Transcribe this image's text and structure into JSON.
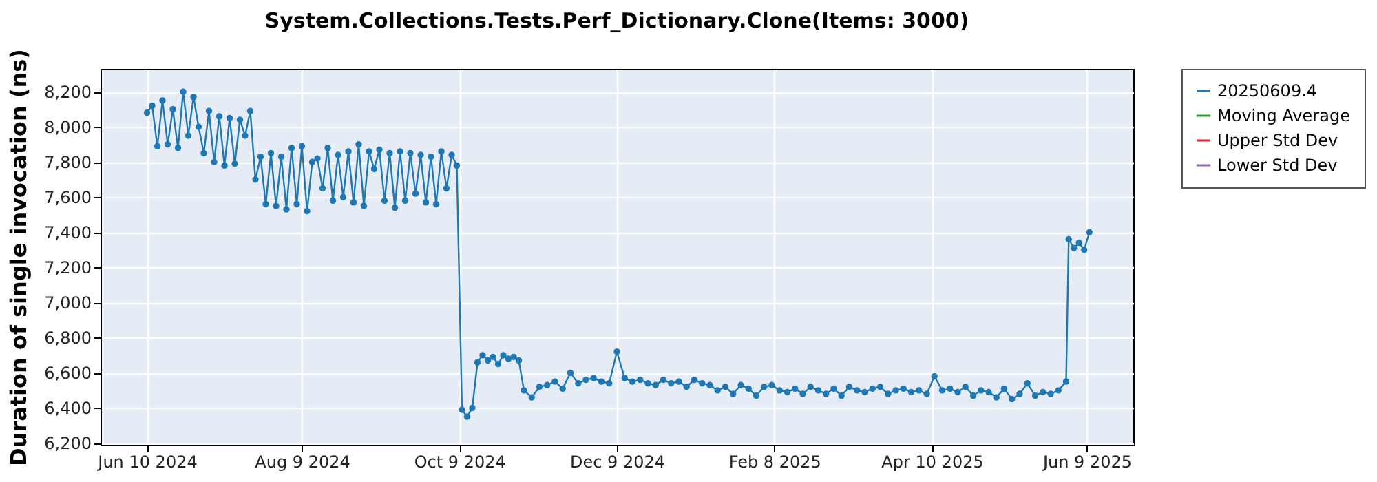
{
  "chart_data": {
    "type": "line",
    "title": "System.Collections.Tests.Perf_Dictionary.Clone(Items: 3000)",
    "ylabel": "Duration of single invocation (ns)",
    "xlim": [
      "2024-05-23",
      "2025-06-27"
    ],
    "xticks": [
      {
        "value": "2024-06-10",
        "label": "Jun 10 2024"
      },
      {
        "value": "2024-08-09",
        "label": "Aug 9 2024"
      },
      {
        "value": "2024-10-09",
        "label": "Oct 9 2024"
      },
      {
        "value": "2024-12-09",
        "label": "Dec 9 2024"
      },
      {
        "value": "2025-02-08",
        "label": "Feb 8 2025"
      },
      {
        "value": "2025-04-10",
        "label": "Apr 10 2025"
      },
      {
        "value": "2025-06-09",
        "label": "Jun 9 2025"
      }
    ],
    "ylim": [
      6190,
      8330
    ],
    "yticks": [
      {
        "value": 6200,
        "label": "6,200"
      },
      {
        "value": 6400,
        "label": "6,400"
      },
      {
        "value": 6600,
        "label": "6,600"
      },
      {
        "value": 6800,
        "label": "6,800"
      },
      {
        "value": 7000,
        "label": "7,000"
      },
      {
        "value": 7200,
        "label": "7,200"
      },
      {
        "value": 7400,
        "label": "7,400"
      },
      {
        "value": 7600,
        "label": "7,600"
      },
      {
        "value": 7800,
        "label": "7,800"
      },
      {
        "value": 8000,
        "label": "8,000"
      },
      {
        "value": 8200,
        "label": "8,200"
      }
    ],
    "grid": true,
    "legend": "right",
    "marker": "circle",
    "line_style": "solid",
    "x": [
      "2024-06-10",
      "2024-06-12",
      "2024-06-14",
      "2024-06-16",
      "2024-06-18",
      "2024-06-20",
      "2024-06-22",
      "2024-06-24",
      "2024-06-26",
      "2024-06-28",
      "2024-06-30",
      "2024-07-02",
      "2024-07-04",
      "2024-07-06",
      "2024-07-08",
      "2024-07-10",
      "2024-07-12",
      "2024-07-14",
      "2024-07-16",
      "2024-07-18",
      "2024-07-20",
      "2024-07-22",
      "2024-07-24",
      "2024-07-26",
      "2024-07-28",
      "2024-07-30",
      "2024-08-01",
      "2024-08-03",
      "2024-08-05",
      "2024-08-07",
      "2024-08-09",
      "2024-08-11",
      "2024-08-13",
      "2024-08-15",
      "2024-08-17",
      "2024-08-19",
      "2024-08-21",
      "2024-08-23",
      "2024-08-25",
      "2024-08-27",
      "2024-08-29",
      "2024-08-31",
      "2024-09-02",
      "2024-09-04",
      "2024-09-06",
      "2024-09-08",
      "2024-09-10",
      "2024-09-12",
      "2024-09-14",
      "2024-09-16",
      "2024-09-18",
      "2024-09-20",
      "2024-09-22",
      "2024-09-24",
      "2024-09-26",
      "2024-09-28",
      "2024-09-30",
      "2024-10-02",
      "2024-10-04",
      "2024-10-06",
      "2024-10-08",
      "2024-10-10",
      "2024-10-12",
      "2024-10-14",
      "2024-10-16",
      "2024-10-18",
      "2024-10-20",
      "2024-10-22",
      "2024-10-24",
      "2024-10-26",
      "2024-10-28",
      "2024-10-30",
      "2024-11-01",
      "2024-11-03",
      "2024-11-06",
      "2024-11-09",
      "2024-11-12",
      "2024-11-15",
      "2024-11-18",
      "2024-11-21",
      "2024-11-24",
      "2024-11-27",
      "2024-11-30",
      "2024-12-03",
      "2024-12-06",
      "2024-12-09",
      "2024-12-12",
      "2024-12-15",
      "2024-12-18",
      "2024-12-21",
      "2024-12-24",
      "2024-12-27",
      "2024-12-30",
      "2025-01-02",
      "2025-01-05",
      "2025-01-08",
      "2025-01-11",
      "2025-01-14",
      "2025-01-17",
      "2025-01-20",
      "2025-01-23",
      "2025-01-26",
      "2025-01-29",
      "2025-02-01",
      "2025-02-04",
      "2025-02-07",
      "2025-02-10",
      "2025-02-13",
      "2025-02-16",
      "2025-02-19",
      "2025-02-22",
      "2025-02-25",
      "2025-02-28",
      "2025-03-03",
      "2025-03-06",
      "2025-03-09",
      "2025-03-12",
      "2025-03-15",
      "2025-03-18",
      "2025-03-21",
      "2025-03-24",
      "2025-03-27",
      "2025-03-30",
      "2025-04-02",
      "2025-04-05",
      "2025-04-08",
      "2025-04-11",
      "2025-04-14",
      "2025-04-17",
      "2025-04-20",
      "2025-04-23",
      "2025-04-26",
      "2025-04-29",
      "2025-05-02",
      "2025-05-05",
      "2025-05-08",
      "2025-05-11",
      "2025-05-14",
      "2025-05-17",
      "2025-05-20",
      "2025-05-23",
      "2025-05-26",
      "2025-05-29",
      "2025-06-01",
      "2025-06-02",
      "2025-06-04",
      "2025-06-06",
      "2025-06-08",
      "2025-06-10"
    ],
    "series": [
      {
        "name": "20250609.4",
        "color": "#1f77b4",
        "values": [
          8080,
          8120,
          7890,
          8150,
          7900,
          8100,
          7880,
          8200,
          7950,
          8170,
          8000,
          7850,
          8090,
          7800,
          8060,
          7780,
          8050,
          7790,
          8040,
          7950,
          8090,
          7700,
          7830,
          7560,
          7850,
          7550,
          7830,
          7530,
          7880,
          7560,
          7890,
          7520,
          7800,
          7820,
          7650,
          7880,
          7580,
          7840,
          7600,
          7860,
          7570,
          7900,
          7550,
          7860,
          7760,
          7870,
          7580,
          7850,
          7540,
          7860,
          7580,
          7850,
          7620,
          7840,
          7570,
          7830,
          7560,
          7860,
          7650,
          7840,
          7780,
          6390,
          6350,
          6400,
          6660,
          6700,
          6670,
          6690,
          6650,
          6700,
          6680,
          6690,
          6670,
          6500,
          6460,
          6520,
          6530,
          6550,
          6510,
          6600,
          6540,
          6560,
          6570,
          6550,
          6540,
          6720,
          6570,
          6550,
          6560,
          6540,
          6530,
          6560,
          6540,
          6550,
          6520,
          6560,
          6540,
          6530,
          6500,
          6520,
          6480,
          6530,
          6510,
          6470,
          6520,
          6530,
          6500,
          6490,
          6510,
          6480,
          6520,
          6500,
          6480,
          6510,
          6470,
          6520,
          6500,
          6490,
          6510,
          6520,
          6480,
          6500,
          6510,
          6490,
          6500,
          6480,
          6580,
          6500,
          6510,
          6490,
          6520,
          6470,
          6500,
          6490,
          6460,
          6510,
          6450,
          6480,
          6540,
          6470,
          6490,
          6480,
          6500,
          6550,
          7360,
          7310,
          7340,
          7300,
          7400
        ]
      },
      {
        "name": "Moving Average",
        "color": "#2ca02c",
        "values": [
          null,
          null,
          null,
          null,
          null,
          null,
          null,
          null,
          null,
          null,
          null,
          null,
          null,
          null,
          null,
          null,
          null,
          null,
          null,
          null,
          null,
          null,
          null,
          null,
          null,
          null,
          null,
          null,
          null,
          null,
          null,
          null,
          null,
          null,
          null,
          null,
          null,
          null,
          null,
          null,
          null,
          null,
          null,
          null,
          null,
          null,
          null,
          null,
          null,
          null,
          null,
          null,
          null,
          null,
          null,
          null,
          null,
          null,
          null,
          null,
          null,
          null,
          null,
          null,
          null,
          null,
          null,
          null,
          null,
          null,
          null,
          null,
          null,
          null,
          null,
          null,
          null,
          null,
          null,
          null,
          null,
          null,
          null,
          null,
          null,
          null,
          null,
          null,
          null,
          null,
          null,
          null,
          null,
          null,
          null,
          null,
          null,
          null,
          null,
          null,
          null,
          null,
          null,
          null,
          null,
          null,
          null,
          null,
          null,
          null,
          null,
          null,
          null,
          null,
          null,
          null,
          null,
          null,
          null,
          null,
          null,
          null,
          null,
          null,
          null,
          null,
          null,
          null,
          null,
          null,
          null,
          null,
          null,
          null,
          null,
          null,
          null,
          null,
          null,
          null,
          null,
          null,
          null,
          null,
          null,
          null,
          null,
          null,
          null
        ]
      },
      {
        "name": "Upper Std Dev",
        "color": "#d62728",
        "values": [
          null,
          null,
          null,
          null,
          null,
          null,
          null,
          null,
          null,
          null,
          null,
          null,
          null,
          null,
          null,
          null,
          null,
          null,
          null,
          null,
          null,
          null,
          null,
          null,
          null,
          null,
          null,
          null,
          null,
          null,
          null,
          null,
          null,
          null,
          null,
          null,
          null,
          null,
          null,
          null,
          null,
          null,
          null,
          null,
          null,
          null,
          null,
          null,
          null,
          null,
          null,
          null,
          null,
          null,
          null,
          null,
          null,
          null,
          null,
          null,
          null,
          null,
          null,
          null,
          null,
          null,
          null,
          null,
          null,
          null,
          null,
          null,
          null,
          null,
          null,
          null,
          null,
          null,
          null,
          null,
          null,
          null,
          null,
          null,
          null,
          null,
          null,
          null,
          null,
          null,
          null,
          null,
          null,
          null,
          null,
          null,
          null,
          null,
          null,
          null,
          null,
          null,
          null,
          null,
          null,
          null,
          null,
          null,
          null,
          null,
          null,
          null,
          null,
          null,
          null,
          null,
          null,
          null,
          null,
          null,
          null,
          null,
          null,
          null,
          null,
          null,
          null,
          null,
          null,
          null,
          null,
          null,
          null,
          null,
          null,
          null,
          null,
          null,
          null,
          null,
          null,
          null,
          null,
          null,
          null,
          null,
          null,
          null,
          null
        ]
      },
      {
        "name": "Lower Std Dev",
        "color": "#9467bd",
        "values": [
          null,
          null,
          null,
          null,
          null,
          null,
          null,
          null,
          null,
          null,
          null,
          null,
          null,
          null,
          null,
          null,
          null,
          null,
          null,
          null,
          null,
          null,
          null,
          null,
          null,
          null,
          null,
          null,
          null,
          null,
          null,
          null,
          null,
          null,
          null,
          null,
          null,
          null,
          null,
          null,
          null,
          null,
          null,
          null,
          null,
          null,
          null,
          null,
          null,
          null,
          null,
          null,
          null,
          null,
          null,
          null,
          null,
          null,
          null,
          null,
          null,
          null,
          null,
          null,
          null,
          null,
          null,
          null,
          null,
          null,
          null,
          null,
          null,
          null,
          null,
          null,
          null,
          null,
          null,
          null,
          null,
          null,
          null,
          null,
          null,
          null,
          null,
          null,
          null,
          null,
          null,
          null,
          null,
          null,
          null,
          null,
          null,
          null,
          null,
          null,
          null,
          null,
          null,
          null,
          null,
          null,
          null,
          null,
          null,
          null,
          null,
          null,
          null,
          null,
          null,
          null,
          null,
          null,
          null,
          null,
          null,
          null,
          null,
          null,
          null,
          null,
          null,
          null,
          null,
          null,
          null,
          null,
          null,
          null,
          null,
          null,
          null,
          null,
          null,
          null,
          null,
          null,
          null,
          null,
          null,
          null,
          null,
          null,
          null
        ]
      }
    ]
  }
}
